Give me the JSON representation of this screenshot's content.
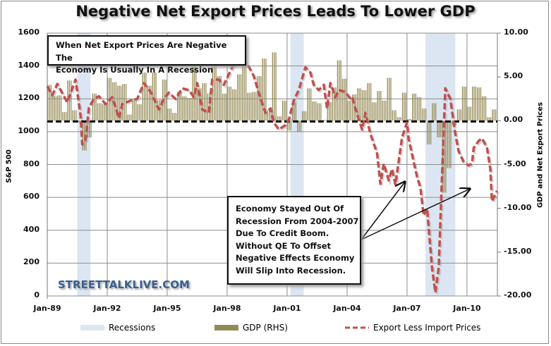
{
  "title": "Negative Net Export Prices Leads To Lower GDP",
  "annotations": {
    "top_note": [
      "When Net Export Prices Are Negative The",
      "Economy Is Usually In A Recession"
    ],
    "bottom_note": [
      "Economy Stayed Out Of",
      "Recession From 2004-2007",
      "Due To Credit Boom.",
      "Without QE To Offset",
      "Negative Effects Economy",
      "Will Slip Into Recession."
    ]
  },
  "watermark": "STREETTALKLIVE.COM",
  "chart_data": {
    "type": "bar+line",
    "title": "Negative Net Export Prices Leads To Lower GDP",
    "ylabel_left": "S&P 500",
    "ylabel_right": "GDP and Net Export Prices",
    "ylim_left": [
      0,
      1600
    ],
    "ylim_right": [
      -20,
      10
    ],
    "left_ticks": [
      "0",
      "200",
      "400",
      "600",
      "800",
      "1000",
      "1200",
      "1400",
      "1600"
    ],
    "right_ticks": [
      "-20.00",
      "-15.00",
      "-10.00",
      "-5.00",
      "0.00",
      "5.00",
      "10.00"
    ],
    "x_ticks": [
      "Jan-89",
      "Jan-92",
      "Jan-95",
      "Jan-98",
      "Jan-01",
      "Jan-04",
      "Jan-07",
      "Jan-10"
    ],
    "grid": true,
    "legend_position": "bottom",
    "legend": [
      "Recessions",
      "GDP (RHS)",
      "Export Less Import Prices"
    ],
    "colors": {
      "recession": "#dce6f2",
      "gdp": "#948a54",
      "export_prices": "#c0504d",
      "zero_line": "#000000",
      "watermark": "#3a5f91"
    },
    "recessions": [
      [
        "1990-07",
        "1991-03"
      ],
      [
        "2001-03",
        "2001-11"
      ],
      [
        "2007-12",
        "2009-06"
      ]
    ],
    "gdp_quarterly": {
      "start": "1989-Q1",
      "values": [
        4.1,
        2.8,
        2.9,
        1.0,
        4.6,
        1.2,
        -0.2,
        -3.4,
        -1.9,
        3.1,
        2.0,
        1.9,
        4.9,
        4.4,
        4.0,
        4.2,
        0.7,
        2.5,
        1.9,
        5.5,
        4.0,
        5.5,
        2.4,
        4.7,
        1.4,
        0.9,
        3.3,
        2.8,
        2.6,
        7.2,
        3.7,
        4.3,
        3.1,
        6.2,
        5.1,
        3.1,
        3.9,
        3.6,
        5.3,
        6.7,
        3.2,
        3.3,
        5.1,
        7.1,
        1.2,
        7.8,
        0.5,
        2.3,
        -1.1,
        2.1,
        -1.3,
        1.1,
        3.7,
        2.2,
        2.0,
        0.1,
        2.1,
        3.8,
        6.9,
        4.8,
        2.3,
        3.0,
        3.7,
        3.5,
        4.3,
        2.1,
        3.4,
        2.3,
        4.9,
        1.2,
        0.4,
        3.2,
        0.2,
        3.1,
        2.7,
        1.4,
        -2.7,
        2.0,
        -1.9,
        -8.2,
        -5.4,
        -0.5,
        1.3,
        3.9,
        1.6,
        3.9,
        3.8,
        2.8,
        0.4,
        1.3
      ]
    },
    "export_less_import_prices": [
      [
        "1989-01",
        3.9
      ],
      [
        "1989-04",
        2.9
      ],
      [
        "1989-07",
        4.2
      ],
      [
        "1990-01",
        2.1
      ],
      [
        "1990-06",
        4.7
      ],
      [
        "1990-09",
        0.6
      ],
      [
        "1990-10",
        -2.7
      ],
      [
        "1990-12",
        -2.2
      ],
      [
        "1991-02",
        1.5
      ],
      [
        "1991-05",
        2.5
      ],
      [
        "1991-08",
        2.8
      ],
      [
        "1991-12",
        1.9
      ],
      [
        "1992-04",
        2.7
      ],
      [
        "1992-08",
        0.3
      ],
      [
        "1992-10",
        1.9
      ],
      [
        "1993-03",
        2.3
      ],
      [
        "1993-07",
        2.5
      ],
      [
        "1993-11",
        4.3
      ],
      [
        "1994-03",
        3.3
      ],
      [
        "1994-08",
        1.3
      ],
      [
        "1994-11",
        2.5
      ],
      [
        "1995-02",
        3.2
      ],
      [
        "1995-06",
        2.5
      ],
      [
        "1995-10",
        3.7
      ],
      [
        "1996-02",
        3.5
      ],
      [
        "1996-05",
        2.7
      ],
      [
        "1996-07",
        4.3
      ],
      [
        "1996-10",
        1.3
      ],
      [
        "1997-02",
        0.9
      ],
      [
        "1997-04",
        4.7
      ],
      [
        "1997-08",
        4.7
      ],
      [
        "1997-11",
        4.1
      ],
      [
        "1998-04",
        6.1
      ],
      [
        "1998-08",
        7.3
      ],
      [
        "1999-01",
        6.5
      ],
      [
        "1999-05",
        5.1
      ],
      [
        "1999-09",
        2.5
      ],
      [
        "1999-12",
        0.9
      ],
      [
        "2000-03",
        1.4
      ],
      [
        "2000-05",
        -0.2
      ],
      [
        "2000-08",
        -1.0
      ],
      [
        "2000-12",
        -0.5
      ],
      [
        "2001-02",
        0.1
      ],
      [
        "2001-05",
        2.3
      ],
      [
        "2001-08",
        3.5
      ],
      [
        "2001-12",
        6.1
      ],
      [
        "2002-03",
        5.5
      ],
      [
        "2002-05",
        4.1
      ],
      [
        "2002-08",
        3.5
      ],
      [
        "2002-11",
        4.1
      ],
      [
        "2003-01",
        1.4
      ],
      [
        "2003-03",
        4.3
      ],
      [
        "2003-06",
        2.7
      ],
      [
        "2003-08",
        3.5
      ],
      [
        "2003-12",
        3.3
      ],
      [
        "2004-03",
        2.5
      ],
      [
        "2004-04",
        2.7
      ],
      [
        "2004-06",
        1.4
      ],
      [
        "2004-10",
        -1.0
      ],
      [
        "2004-12",
        0.9
      ],
      [
        "2005-03",
        -1.5
      ],
      [
        "2005-07",
        -3.7
      ],
      [
        "2005-09",
        -7.2
      ],
      [
        "2005-11",
        -4.9
      ],
      [
        "2006-02",
        -6.8
      ],
      [
        "2006-04",
        -5.5
      ],
      [
        "2006-06",
        -7.3
      ],
      [
        "2006-10",
        -1.9
      ],
      [
        "2007-01",
        -0.2
      ],
      [
        "2007-02",
        -2.1
      ],
      [
        "2007-07",
        -6.4
      ],
      [
        "2007-09",
        -7.6
      ],
      [
        "2007-11",
        -10.8
      ],
      [
        "2008-01",
        -10.0
      ],
      [
        "2008-04",
        -16.8
      ],
      [
        "2008-06",
        -19.6
      ],
      [
        "2008-08",
        -16.8
      ],
      [
        "2008-10",
        -6.4
      ],
      [
        "2008-12",
        3.7
      ],
      [
        "2009-03",
        2.5
      ],
      [
        "2009-06",
        -1.5
      ],
      [
        "2009-08",
        -3.5
      ],
      [
        "2009-11",
        -4.7
      ],
      [
        "2010-02",
        -5.1
      ],
      [
        "2010-04",
        -4.9
      ],
      [
        "2010-05",
        -3.1
      ],
      [
        "2010-08",
        -2.3
      ],
      [
        "2010-10",
        -2.0
      ],
      [
        "2011-01",
        -3.1
      ],
      [
        "2011-03",
        -5.5
      ],
      [
        "2011-04",
        -9.2
      ],
      [
        "2011-07",
        -8.0
      ]
    ]
  }
}
